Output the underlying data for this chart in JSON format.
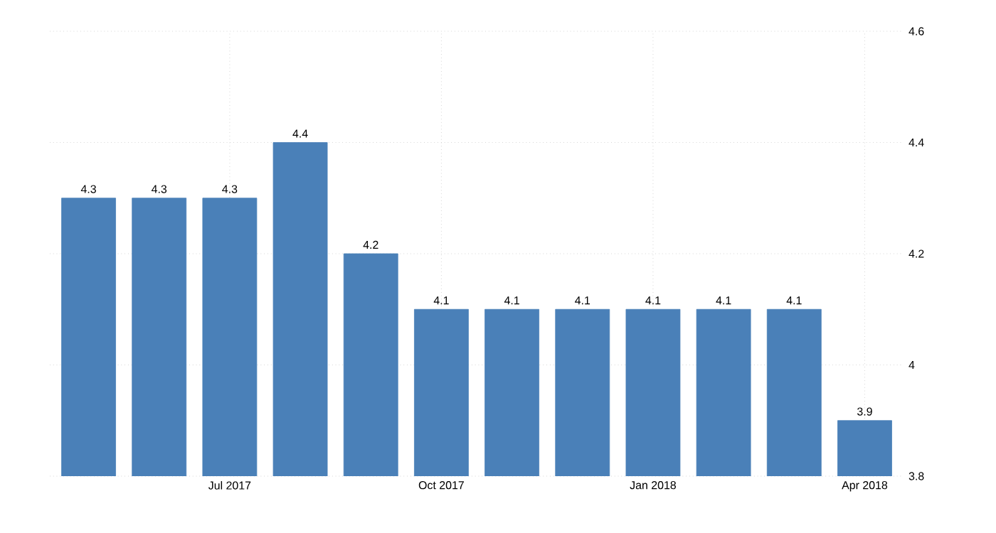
{
  "chart_data": {
    "type": "bar",
    "categories": [
      null,
      null,
      "Jul 2017",
      null,
      null,
      "Oct 2017",
      null,
      null,
      "Jan 2018",
      null,
      null,
      "Apr 2018"
    ],
    "values": [
      4.3,
      4.3,
      4.3,
      4.4,
      4.2,
      4.1,
      4.1,
      4.1,
      4.1,
      4.1,
      4.1,
      3.9
    ],
    "color": "#4a80b8",
    "ylim": [
      3.8,
      4.6
    ],
    "yticks": [
      3.8,
      4,
      4.2,
      4.4,
      4.6
    ],
    "grid": true,
    "data_labels": true
  }
}
